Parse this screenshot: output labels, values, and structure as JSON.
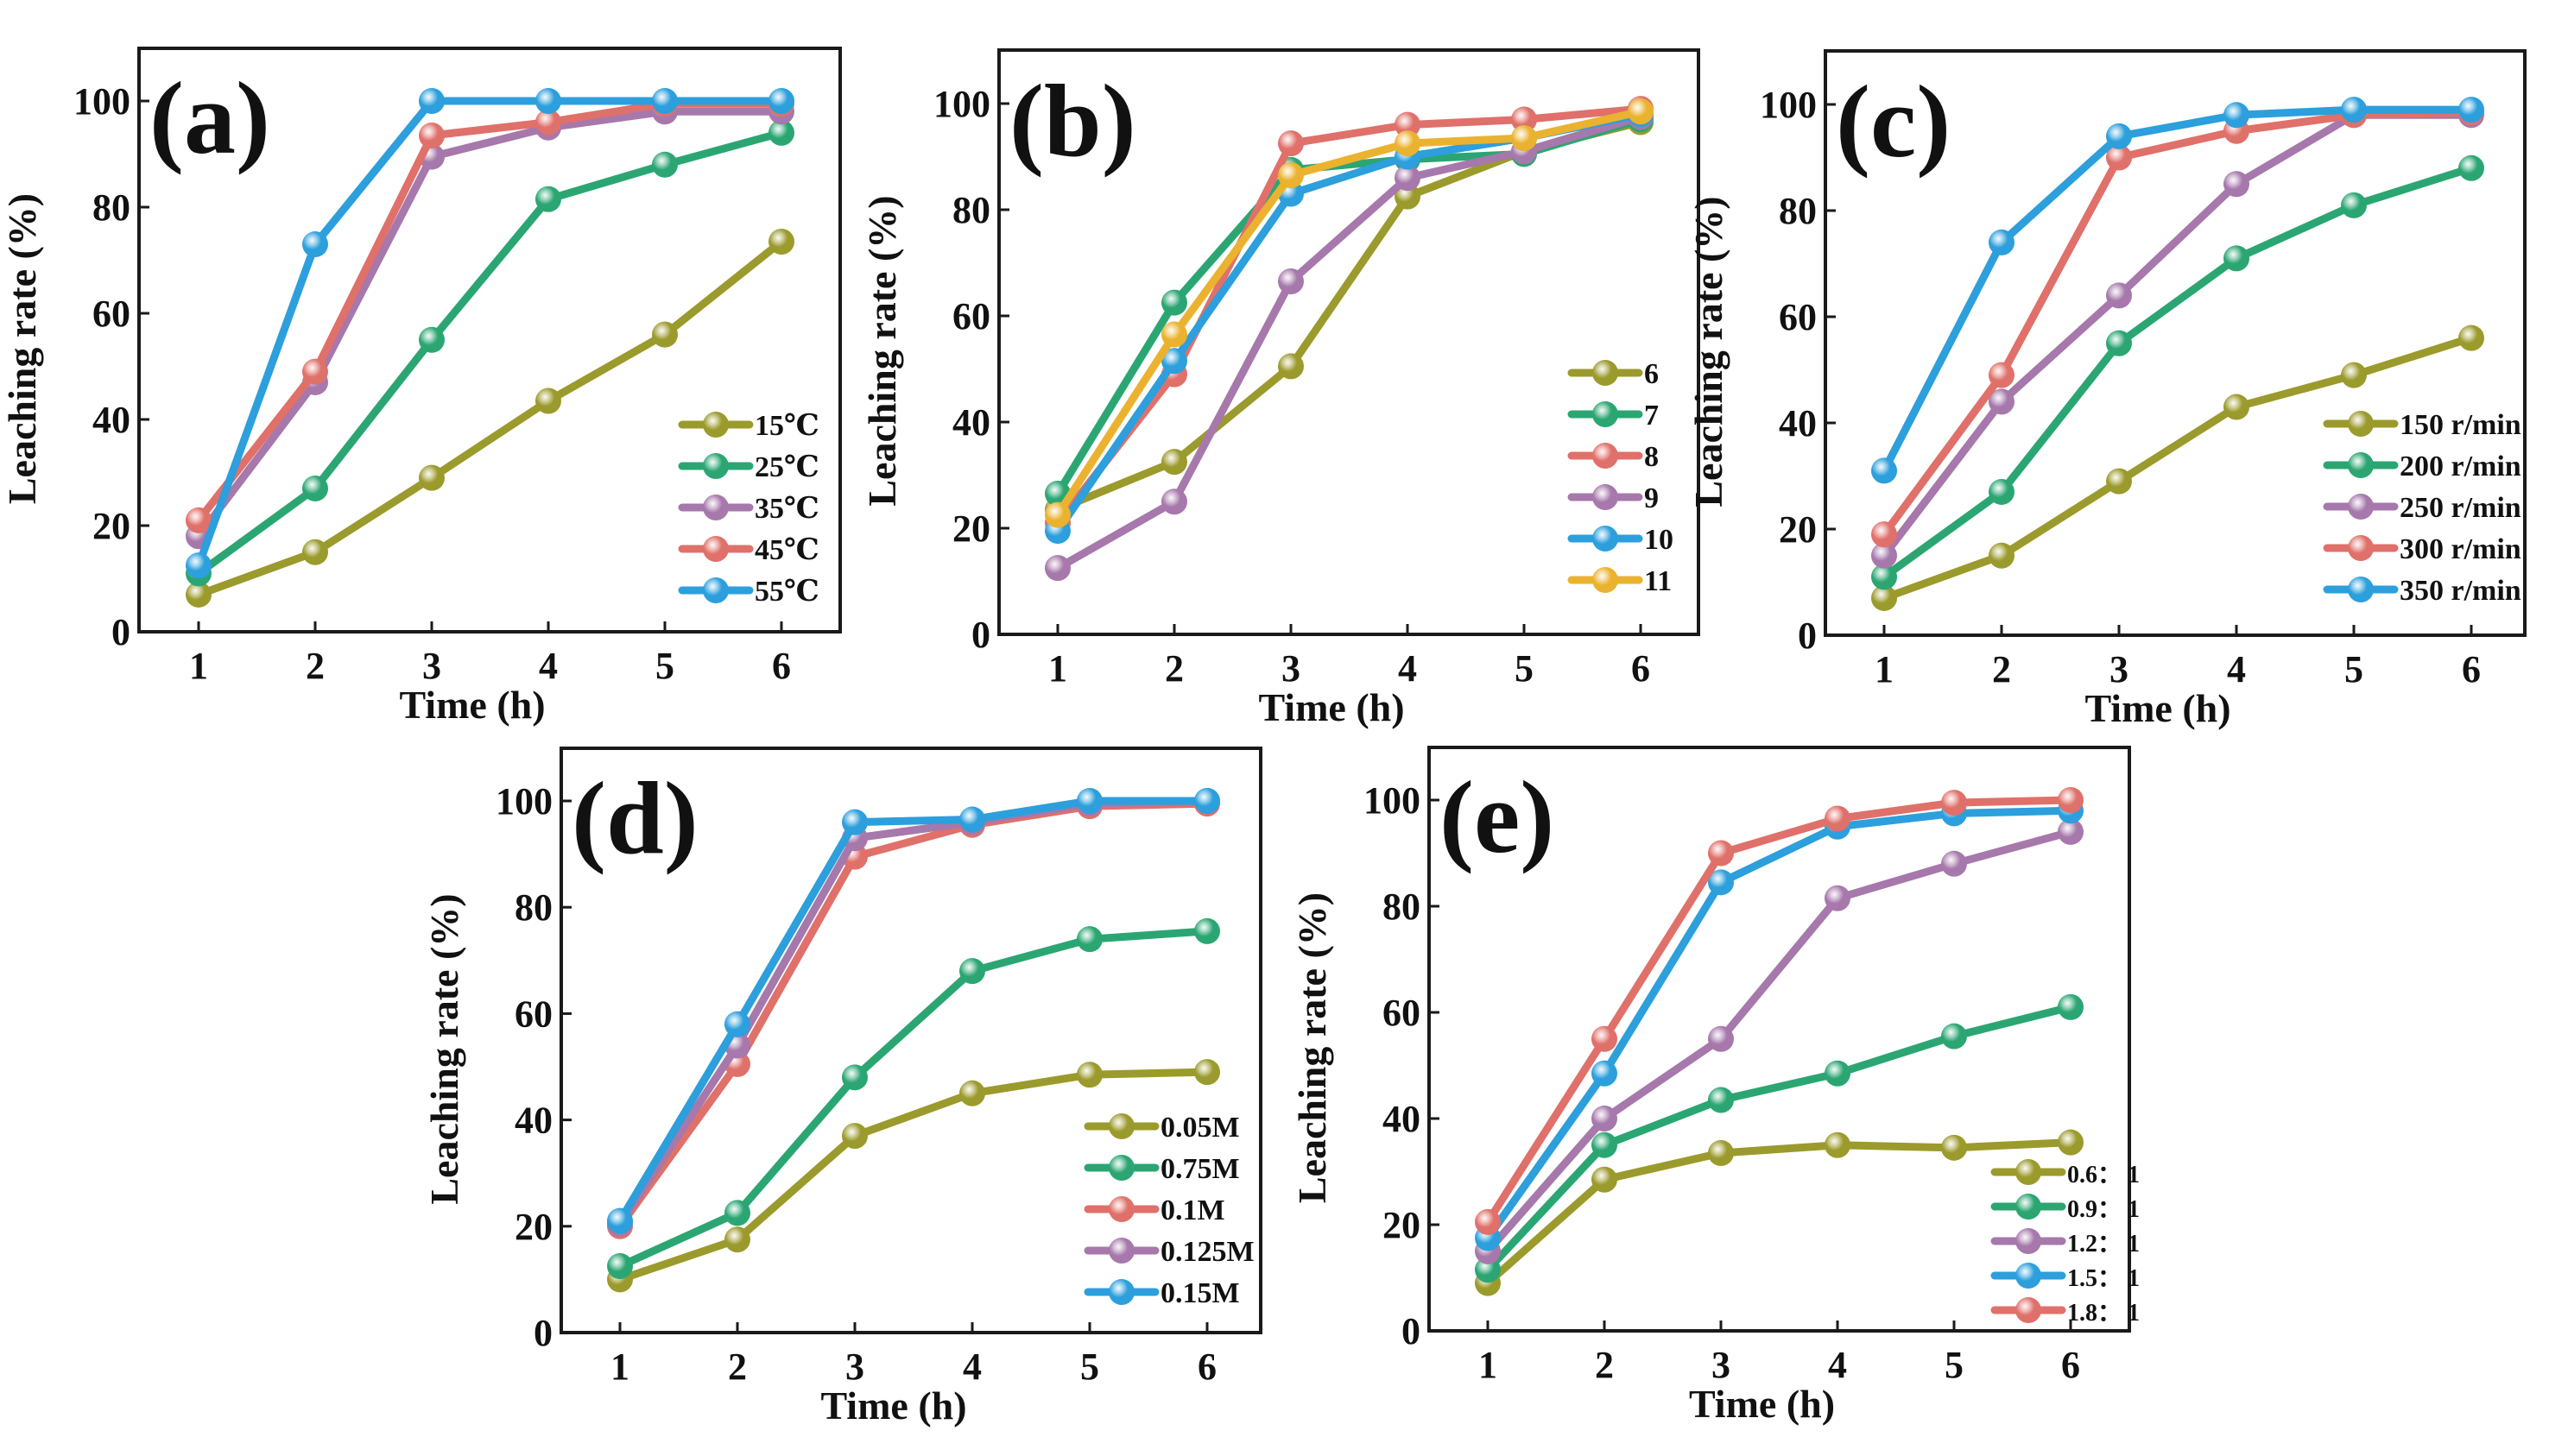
{
  "figure": {
    "description": "Five-panel figure of leaching rate versus time"
  },
  "chart_data": [
    {
      "id": "a",
      "type": "line",
      "panel_label": "(a)",
      "title": "",
      "xlabel": "Time (h)",
      "ylabel": "Leaching rate (%)",
      "x": [
        1,
        2,
        3,
        4,
        5,
        6
      ],
      "xticks": [
        "1",
        "2",
        "3",
        "4",
        "5",
        "6"
      ],
      "yticks": [
        "0",
        "20",
        "40",
        "60",
        "80",
        "100"
      ],
      "ylim": [
        0,
        110
      ],
      "xlim": [
        0.5,
        6.5
      ],
      "grid": false,
      "legend_position": "bottom-right",
      "series": [
        {
          "name": "15℃",
          "color": "#9b9a2c",
          "values": [
            7,
            15,
            29,
            43.5,
            56,
            73.5
          ]
        },
        {
          "name": "25℃",
          "color": "#2ba673",
          "values": [
            11,
            27,
            55,
            81.5,
            88,
            94
          ]
        },
        {
          "name": "35℃",
          "color": "#a678ab",
          "values": [
            18,
            47,
            89.5,
            95,
            98,
            98
          ]
        },
        {
          "name": "45℃",
          "color": "#e0706a",
          "values": [
            21,
            49,
            93.5,
            96,
            99.5,
            99.5
          ]
        },
        {
          "name": "55℃",
          "color": "#2c9fdc",
          "values": [
            12.5,
            73,
            100,
            100,
            100,
            100
          ]
        }
      ]
    },
    {
      "id": "b",
      "type": "line",
      "panel_label": "(b)",
      "title": "",
      "xlabel": "Time (h)",
      "ylabel": "Leaching rate (%)",
      "x": [
        1,
        2,
        3,
        4,
        5,
        6
      ],
      "xticks": [
        "1",
        "2",
        "3",
        "4",
        "5",
        "6"
      ],
      "yticks": [
        "0",
        "20",
        "40",
        "60",
        "80",
        "100"
      ],
      "ylim": [
        0,
        110
      ],
      "xlim": [
        0.5,
        6.5
      ],
      "grid": false,
      "legend_position": "bottom-right",
      "series": [
        {
          "name": "6",
          "color": "#9b9a2c",
          "values": [
            23.5,
            32.5,
            50.5,
            82.5,
            91,
            96.5
          ]
        },
        {
          "name": "7",
          "color": "#2ba673",
          "values": [
            26.5,
            62.5,
            87.5,
            89.5,
            90.5,
            97
          ]
        },
        {
          "name": "8",
          "color": "#e0706a",
          "values": [
            21,
            49,
            92.5,
            96,
            97,
            99
          ]
        },
        {
          "name": "9",
          "color": "#a678ab",
          "values": [
            12.5,
            25,
            66.5,
            86,
            91,
            97.5
          ]
        },
        {
          "name": "10",
          "color": "#2c9fdc",
          "values": [
            19.5,
            51.5,
            83,
            90,
            93.5,
            98
          ]
        },
        {
          "name": "11",
          "color": "#ebb22f",
          "values": [
            22.5,
            56.5,
            86.5,
            92.5,
            93.5,
            98.5
          ]
        }
      ]
    },
    {
      "id": "c",
      "type": "line",
      "panel_label": "(c)",
      "title": "",
      "xlabel": "Time (h)",
      "ylabel": "Leaching rate (%)",
      "x": [
        1,
        2,
        3,
        4,
        5,
        6
      ],
      "xticks": [
        "1",
        "2",
        "3",
        "4",
        "5",
        "6"
      ],
      "yticks": [
        "0",
        "20",
        "40",
        "60",
        "80",
        "100"
      ],
      "ylim": [
        0,
        110
      ],
      "xlim": [
        0.5,
        6.5
      ],
      "grid": false,
      "legend_position": "bottom-right",
      "series": [
        {
          "name": "150 r/min",
          "color": "#9b9a2c",
          "values": [
            7,
            15,
            29,
            43,
            49,
            56
          ]
        },
        {
          "name": "200 r/min",
          "color": "#2ba673",
          "values": [
            11,
            27,
            55,
            71,
            81,
            88
          ]
        },
        {
          "name": "250 r/min",
          "color": "#a678ab",
          "values": [
            15,
            44,
            64,
            85,
            98,
            98
          ]
        },
        {
          "name": "300 r/min",
          "color": "#e0706a",
          "values": [
            19,
            49,
            90,
            95,
            98,
            98.5
          ]
        },
        {
          "name": "350 r/min",
          "color": "#2c9fdc",
          "values": [
            31,
            74,
            94,
            98,
            99,
            99
          ]
        }
      ]
    },
    {
      "id": "d",
      "type": "line",
      "panel_label": "(d)",
      "title": "",
      "xlabel": "Time (h)",
      "ylabel": "Leaching rate (%)",
      "x": [
        1,
        2,
        3,
        4,
        5,
        6
      ],
      "xticks": [
        "1",
        "2",
        "3",
        "4",
        "5",
        "6"
      ],
      "yticks": [
        "0",
        "20",
        "40",
        "60",
        "80",
        "100"
      ],
      "ylim": [
        0,
        110
      ],
      "xlim": [
        0.5,
        6.5
      ],
      "grid": false,
      "legend_position": "bottom-right",
      "series": [
        {
          "name": "0.05M",
          "color": "#9b9a2c",
          "values": [
            10,
            17.5,
            37,
            45,
            48.5,
            49
          ]
        },
        {
          "name": "0.75M",
          "color": "#2ba673",
          "values": [
            12.5,
            22.5,
            48,
            68,
            74,
            75.5
          ]
        },
        {
          "name": "0.1M",
          "color": "#e0706a",
          "values": [
            20,
            50.5,
            89.5,
            95.5,
            99,
            99.5
          ]
        },
        {
          "name": "0.125M",
          "color": "#a678ab",
          "values": [
            20.5,
            54,
            93,
            96,
            99.5,
            100
          ]
        },
        {
          "name": "0.15M",
          "color": "#2c9fdc",
          "values": [
            21,
            58,
            96,
            96.5,
            100,
            100
          ]
        }
      ]
    },
    {
      "id": "e",
      "type": "line",
      "panel_label": "(e)",
      "title": "",
      "xlabel": "Time (h)",
      "ylabel": "Leaching rate (%)",
      "x": [
        1,
        2,
        3,
        4,
        5,
        6
      ],
      "xticks": [
        "1",
        "2",
        "3",
        "4",
        "5",
        "6"
      ],
      "yticks": [
        "0",
        "20",
        "40",
        "60",
        "80",
        "100"
      ],
      "ylim": [
        0,
        110
      ],
      "xlim": [
        0.5,
        6.5
      ],
      "grid": false,
      "legend_position": "bottom-right",
      "series": [
        {
          "name": "0.6： 1",
          "color": "#9b9a2c",
          "values": [
            9,
            28.5,
            33.5,
            35,
            34.5,
            35.5
          ]
        },
        {
          "name": "0.9： 1",
          "color": "#2ba673",
          "values": [
            11.5,
            35,
            43.5,
            48.5,
            55.5,
            61
          ]
        },
        {
          "name": "1.2： 1",
          "color": "#a678ab",
          "values": [
            15,
            40,
            55,
            81.5,
            88,
            94
          ]
        },
        {
          "name": "1.5： 1",
          "color": "#2c9fdc",
          "values": [
            17.5,
            48.5,
            84.5,
            95,
            97.5,
            98
          ]
        },
        {
          "name": "1.8： 1",
          "color": "#e0706a",
          "values": [
            20.5,
            55,
            90,
            96.5,
            99.5,
            100
          ]
        }
      ]
    }
  ]
}
